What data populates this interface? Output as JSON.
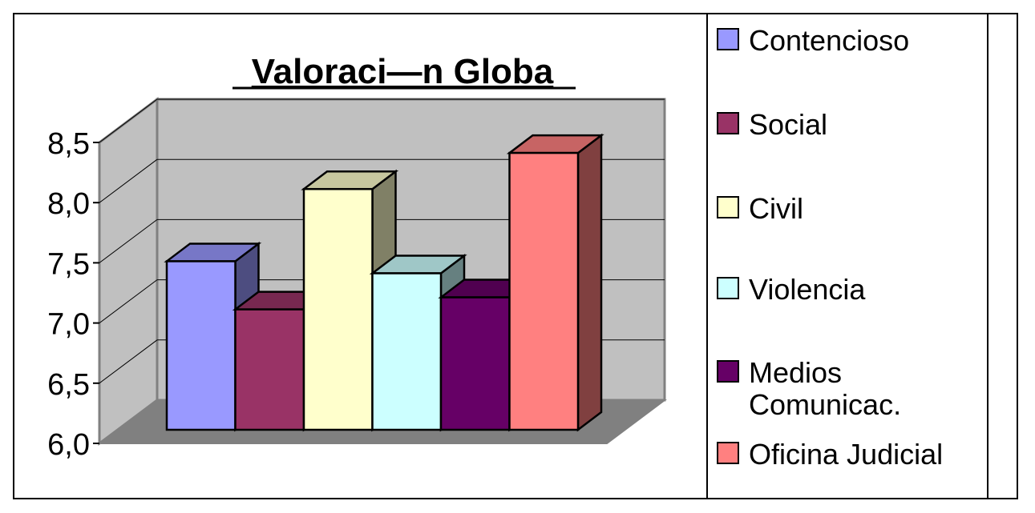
{
  "chart_data": {
    "type": "bar",
    "title": "Valoraci—n Globa",
    "ylim": [
      6.0,
      8.5
    ],
    "yticks": [
      "6,0",
      "6,5",
      "7,0",
      "7,5",
      "8,0",
      "8,5"
    ],
    "grid": true,
    "legend_position": "right",
    "series": [
      {
        "name": "Contencioso",
        "value": 7.4,
        "color": "#9999ff"
      },
      {
        "name": "Social",
        "value": 7.0,
        "color": "#993366"
      },
      {
        "name": "Civil",
        "value": 8.0,
        "color": "#ffffcc"
      },
      {
        "name": "Violencia",
        "value": 7.3,
        "color": "#ccffff"
      },
      {
        "name": "Medios\nComunicac.",
        "value": 7.1,
        "color": "#660066"
      },
      {
        "name": "Oficina Judicial",
        "value": 8.3,
        "color": "#ff8080"
      }
    ],
    "colors": {
      "wall": "#c0c0c0",
      "floor": "#808080",
      "grid": "#000000"
    }
  }
}
